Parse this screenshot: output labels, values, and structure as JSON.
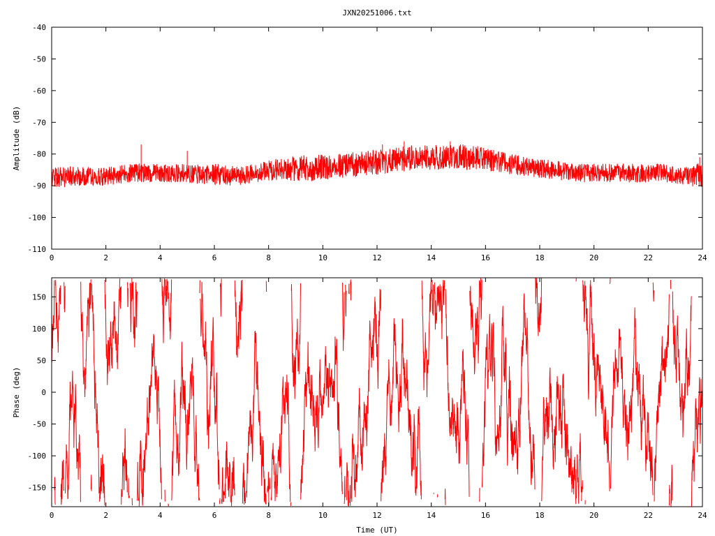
{
  "title": "JXN20251006.txt",
  "colors": {
    "series": "#ff0000",
    "axis": "#000000",
    "background": "#ffffff"
  },
  "chart_data": [
    {
      "type": "line",
      "title": "JXN20251006.txt",
      "xlabel": "",
      "ylabel": "Amplitude (dB)",
      "xlim": [
        0,
        24
      ],
      "ylim": [
        -110,
        -40
      ],
      "xticks": [
        "0",
        "2",
        "4",
        "6",
        "8",
        "10",
        "12",
        "14",
        "16",
        "18",
        "20",
        "22",
        "24"
      ],
      "yticks": [
        "-40",
        "-50",
        "-60",
        "-70",
        "-80",
        "-90",
        "-100",
        "-110"
      ],
      "grid": false,
      "legend": "none",
      "series": [
        {
          "color": "#ff0000",
          "envelope": {
            "x": [
              0,
              1,
              2,
              3,
              4,
              5,
              6,
              6.9,
              7.5,
              8.5,
              9.5,
              10.5,
              11.5,
              12.5,
              13.5,
              14.5,
              15.5,
              16.5,
              17.5,
              18.5,
              19.5,
              20.5,
              21.5,
              22.5,
              23.5,
              24
            ],
            "upper": [
              -84,
              -84,
              -84,
              -83,
              -83,
              -83,
              -83,
              -84,
              -83,
              -81,
              -80,
              -80,
              -79,
              -78,
              -77,
              -77,
              -77,
              -79,
              -81,
              -82,
              -83,
              -83,
              -83,
              -83,
              -84,
              -82
            ],
            "lower": [
              -91,
              -90,
              -90,
              -89,
              -89,
              -89,
              -90,
              -90,
              -89,
              -88,
              -89,
              -88,
              -87,
              -86,
              -85,
              -85,
              -85,
              -86,
              -87,
              -88,
              -89,
              -89,
              -89,
              -89,
              -90,
              -91
            ]
          },
          "spikes": [
            [
              3.3,
              -77
            ],
            [
              5.0,
              -79
            ],
            [
              13.0,
              -76
            ],
            [
              14.7,
              -76
            ],
            [
              12.2,
              -77
            ],
            [
              23.9,
              -81
            ]
          ]
        }
      ]
    },
    {
      "type": "line",
      "title": "",
      "xlabel": "Time (UT)",
      "ylabel": "Phase (deg)",
      "xlim": [
        0,
        24
      ],
      "ylim": [
        -180,
        180
      ],
      "xticks": [
        "0",
        "2",
        "4",
        "6",
        "8",
        "10",
        "12",
        "14",
        "16",
        "18",
        "20",
        "22",
        "24"
      ],
      "yticks": [
        "150",
        "100",
        "50",
        "0",
        "-50",
        "-100",
        "-150"
      ],
      "grid": false,
      "legend": "none",
      "series": [
        {
          "color": "#ff0000",
          "pattern": "random-walk-wrapped",
          "range": [
            -180,
            180
          ]
        }
      ]
    }
  ]
}
